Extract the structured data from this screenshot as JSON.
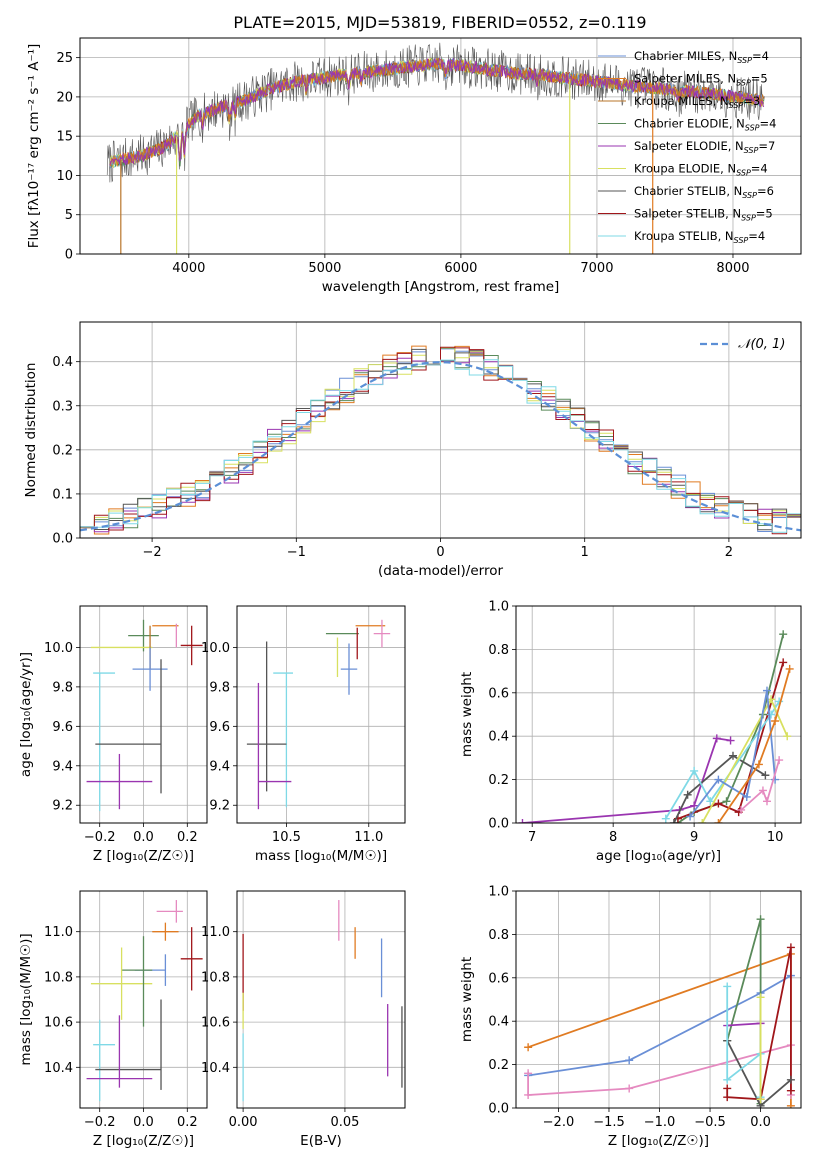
{
  "title": "PLATE=2015, MJD=53819, FIBERID=0552, z=0.119",
  "colors": {
    "chabrier_miles": "#6a8fd6",
    "salpeter_miles": "#e07b22",
    "kroupa_miles": "#b8742a",
    "chabrier_elodie": "#5a8a5a",
    "salpeter_elodie": "#9a35b0",
    "kroupa_elodie": "#d8e060",
    "chabrier_stelib": "#555555",
    "salpeter_stelib": "#a0161a",
    "kroupa_stelib": "#7fd9e6",
    "pink": "#e58ac0",
    "normal": "#5b8fd6"
  },
  "chart_data": [
    {
      "type": "line",
      "panel": "spectrum",
      "xlabel": "wavelength [Angstrom, rest frame]",
      "ylabel": "Flux [fλ10⁻¹⁷ erg cm⁻² s⁻¹ A⁻¹]",
      "xlim": [
        3200,
        8500
      ],
      "ylim": [
        0,
        27.5
      ],
      "xticks": [
        4000,
        5000,
        6000,
        7000,
        8000
      ],
      "yticks": [
        0,
        5,
        10,
        15,
        20,
        25
      ],
      "legend_position": "top-right",
      "continuum": {
        "x": [
          3400,
          3500,
          3650,
          3800,
          3950,
          4050,
          4200,
          4400,
          4600,
          4800,
          5000,
          5200,
          5400,
          5600,
          5800,
          6000,
          6200,
          6400,
          6600,
          6800,
          7000,
          7200,
          7500,
          7800,
          8100,
          8230
        ],
        "y": [
          11.5,
          12.0,
          12.5,
          13.5,
          15.5,
          17.5,
          18.5,
          19.5,
          21.0,
          22.0,
          22.5,
          23.0,
          23.3,
          23.8,
          24.2,
          24.0,
          23.5,
          23.0,
          22.8,
          22.3,
          22.0,
          21.5,
          21.0,
          20.5,
          19.8,
          19.5
        ]
      },
      "series": [
        {
          "name": "Chabrier MILES, N",
          "sub": "SSP",
          "value": "=4",
          "color_key": "chabrier_miles"
        },
        {
          "name": "Salpeter MILES, N",
          "sub": "SSP",
          "value": "=5",
          "color_key": "salpeter_miles"
        },
        {
          "name": "Kroupa MILES, N",
          "sub": "SSP",
          "value": "=3",
          "color_key": "kroupa_miles"
        },
        {
          "name": "Chabrier ELODIE, N",
          "sub": "SSP",
          "value": "=4",
          "color_key": "chabrier_elodie"
        },
        {
          "name": "Salpeter ELODIE, N",
          "sub": "SSP",
          "value": "=7",
          "color_key": "salpeter_elodie"
        },
        {
          "name": "Kroupa ELODIE, N",
          "sub": "SSP",
          "value": "=4",
          "color_key": "kroupa_elodie"
        },
        {
          "name": "Chabrier STELIB, N",
          "sub": "SSP",
          "value": "=6",
          "color_key": "chabrier_stelib"
        },
        {
          "name": "Salpeter STELIB, N",
          "sub": "SSP",
          "value": "=5",
          "color_key": "salpeter_stelib"
        },
        {
          "name": "Kroupa STELIB, N",
          "sub": "SSP",
          "value": "=4",
          "color_key": "kroupa_stelib"
        }
      ]
    },
    {
      "type": "line",
      "panel": "residuals",
      "xlabel": "(data-model)/error",
      "ylabel": "Normed distribution",
      "xlim": [
        -2.5,
        2.5
      ],
      "ylim": [
        0,
        0.49
      ],
      "xticks": [
        -2,
        -1,
        0,
        1,
        2
      ],
      "xtick_labels": [
        "−2",
        "−1",
        "0",
        "1",
        "2"
      ],
      "yticks": [
        0.0,
        0.1,
        0.2,
        0.3,
        0.4
      ],
      "legend": "𝒩(0, 1)",
      "legend_position": "top-right",
      "bin_width": 0.1,
      "bin_start": -2.5
    },
    {
      "type": "scatter",
      "panel": "age-vs-Z",
      "xlabel": "Z [log₁₀(Z/Z☉)]",
      "ylabel": "age [log₁₀(age/yr)]",
      "xlim": [
        -0.29,
        0.29
      ],
      "ylim": [
        9.11,
        10.21
      ],
      "xticks": [
        -0.2,
        0.0,
        0.2
      ],
      "xtick_labels": [
        "−0.2",
        "0.0",
        "0.2"
      ],
      "yticks": [
        9.2,
        9.4,
        9.6,
        9.8,
        10.0
      ],
      "points": [
        {
          "x": 0.1,
          "y": 10.11,
          "xe": 0.06,
          "ye": 0.0,
          "c": "salpeter_miles"
        },
        {
          "x": 0.15,
          "y": 10.06,
          "xe": 0.0,
          "ye": 0.06,
          "c": "pink"
        },
        {
          "x": 0.0,
          "y": 10.06,
          "xe": 0.07,
          "ye": 0.08,
          "c": "chabrier_elodie"
        },
        {
          "x": 0.22,
          "y": 10.01,
          "xe": 0.05,
          "ye": 0.1,
          "c": "salpeter_stelib"
        },
        {
          "x": -0.1,
          "y": 10.0,
          "xe": 0.14,
          "ye": 0.0,
          "c": "kroupa_elodie"
        },
        {
          "x": 0.03,
          "y": 10.0,
          "xe": 0.0,
          "ye": 0.11,
          "c": "kroupa_miles"
        },
        {
          "x": 0.03,
          "y": 9.89,
          "xe": 0.08,
          "ye": 0.11,
          "c": "chabrier_miles"
        },
        {
          "x": -0.18,
          "y": 9.87,
          "xe": 0.05,
          "ye": 0.0,
          "c": "kroupa_stelib"
        },
        {
          "x": -0.2,
          "y": 9.52,
          "xe": 0.0,
          "ye": 0.35,
          "c": "kroupa_stelib"
        },
        {
          "x": -0.07,
          "y": 9.51,
          "xe": 0.15,
          "ye": 0.0,
          "c": "chabrier_stelib"
        },
        {
          "x": 0.08,
          "y": 9.6,
          "xe": 0.0,
          "ye": 0.34,
          "c": "chabrier_stelib"
        },
        {
          "x": -0.11,
          "y": 9.32,
          "xe": 0.15,
          "ye": 0.14,
          "c": "salpeter_elodie"
        }
      ]
    },
    {
      "type": "scatter",
      "panel": "age-vs-mass",
      "xlabel": "mass [log₁₀(M/M☉)]",
      "ylabel": "",
      "xlim": [
        10.2,
        11.22
      ],
      "ylim": [
        9.11,
        10.21
      ],
      "xticks": [
        10.5,
        11.0
      ],
      "xtick_labels": [
        "10.5",
        "11.0"
      ],
      "yticks": [
        9.2,
        9.4,
        9.6,
        9.8,
        10.0
      ],
      "points": [
        {
          "x": 11.01,
          "y": 10.11,
          "xe": 0.09,
          "ye": 0.0,
          "c": "salpeter_miles"
        },
        {
          "x": 11.08,
          "y": 10.07,
          "xe": 0.05,
          "ye": 0.07,
          "c": "pink"
        },
        {
          "x": 10.84,
          "y": 10.07,
          "xe": 0.1,
          "ye": 0.0,
          "c": "chabrier_elodie"
        },
        {
          "x": 10.93,
          "y": 10.02,
          "xe": 0.0,
          "ye": 0.08,
          "c": "salpeter_stelib"
        },
        {
          "x": 10.81,
          "y": 9.95,
          "xe": 0.0,
          "ye": 0.1,
          "c": "kroupa_elodie"
        },
        {
          "x": 10.88,
          "y": 9.89,
          "xe": 0.05,
          "ye": 0.13,
          "c": "chabrier_miles"
        },
        {
          "x": 10.48,
          "y": 9.87,
          "xe": 0.06,
          "ye": 0.0,
          "c": "kroupa_stelib"
        },
        {
          "x": 10.5,
          "y": 9.53,
          "xe": 0.0,
          "ye": 0.34,
          "c": "kroupa_stelib"
        },
        {
          "x": 10.38,
          "y": 9.51,
          "xe": 0.12,
          "ye": 0.0,
          "c": "chabrier_stelib"
        },
        {
          "x": 10.38,
          "y": 9.65,
          "xe": 0.0,
          "ye": 0.38,
          "c": "chabrier_stelib"
        },
        {
          "x": 10.33,
          "y": 9.5,
          "xe": 0.0,
          "ye": 0.32,
          "c": "salpeter_elodie"
        },
        {
          "x": 10.43,
          "y": 9.32,
          "xe": 0.1,
          "ye": 0.0,
          "c": "salpeter_elodie"
        }
      ]
    },
    {
      "type": "line",
      "panel": "mass-weight-vs-age",
      "xlabel": "age [log₁₀(age/yr)]",
      "ylabel": "mass weight",
      "xlim": [
        6.8,
        10.32
      ],
      "ylim": [
        0,
        1.0
      ],
      "xticks": [
        7,
        8,
        9,
        10
      ],
      "yticks": [
        0.0,
        0.2,
        0.4,
        0.6,
        0.8,
        1.0
      ],
      "series": [
        {
          "c": "salpeter_elodie",
          "x": [
            6.88,
            8.82,
            9.0,
            9.28,
            9.45
          ],
          "y": [
            0.0,
            0.06,
            0.08,
            0.39,
            0.38
          ]
        },
        {
          "c": "chabrier_elodie",
          "x": [
            8.8,
            9.0,
            9.4,
            9.85,
            10.1
          ],
          "y": [
            0.0,
            0.05,
            0.1,
            0.5,
            0.87
          ]
        },
        {
          "c": "salpeter_stelib",
          "x": [
            8.8,
            9.3,
            9.55,
            10.1
          ],
          "y": [
            0.02,
            0.09,
            0.05,
            0.74
          ]
        },
        {
          "c": "chabrier_stelib",
          "x": [
            8.75,
            8.92,
            9.48,
            9.88
          ],
          "y": [
            0.0,
            0.13,
            0.31,
            0.22
          ]
        },
        {
          "c": "kroupa_stelib",
          "x": [
            8.65,
            9.0,
            9.2,
            9.95,
            10.05
          ],
          "y": [
            0.02,
            0.24,
            0.1,
            0.5,
            0.56
          ]
        },
        {
          "c": "kroupa_elodie",
          "x": [
            9.1,
            9.95,
            10.15
          ],
          "y": [
            0.0,
            0.57,
            0.4
          ]
        },
        {
          "c": "chabrier_miles",
          "x": [
            8.95,
            9.3,
            9.65,
            9.9,
            10.0
          ],
          "y": [
            0.03,
            0.2,
            0.12,
            0.61,
            0.2
          ]
        },
        {
          "c": "salpeter_miles",
          "x": [
            9.3,
            9.8,
            10.0,
            10.18
          ],
          "y": [
            0.0,
            0.27,
            0.47,
            0.71
          ]
        },
        {
          "c": "pink",
          "x": [
            9.58,
            9.85,
            9.9,
            10.05
          ],
          "y": [
            0.06,
            0.15,
            0.1,
            0.29
          ]
        }
      ]
    },
    {
      "type": "scatter",
      "panel": "mass-vs-Z",
      "xlabel": "Z [log₁₀(Z/Z☉)]",
      "ylabel": "mass [log₁₀(M/M☉)]",
      "xlim": [
        -0.29,
        0.29
      ],
      "ylim": [
        10.22,
        11.18
      ],
      "xticks": [
        -0.2,
        0.0,
        0.2
      ],
      "xtick_labels": [
        "−0.2",
        "0.0",
        "0.2"
      ],
      "yticks": [
        10.4,
        10.6,
        10.8,
        11.0
      ],
      "points": [
        {
          "x": 0.15,
          "y": 11.09,
          "xe": 0.0,
          "ye": 0.05,
          "c": "pink"
        },
        {
          "x": 0.12,
          "y": 11.09,
          "xe": 0.06,
          "ye": 0.0,
          "c": "pink"
        },
        {
          "x": 0.1,
          "y": 11.0,
          "xe": 0.06,
          "ye": 0.04,
          "c": "salpeter_miles"
        },
        {
          "x": 0.22,
          "y": 10.88,
          "xe": 0.05,
          "ye": 0.14,
          "c": "salpeter_stelib"
        },
        {
          "x": 0.1,
          "y": 10.83,
          "xe": 0.0,
          "ye": 0.07,
          "c": "chabrier_miles"
        },
        {
          "x": 0.03,
          "y": 10.83,
          "xe": 0.07,
          "ye": 0.0,
          "c": "chabrier_miles"
        },
        {
          "x": -0.03,
          "y": 10.83,
          "xe": 0.07,
          "ye": 0.0,
          "c": "chabrier_elodie"
        },
        {
          "x": -0.1,
          "y": 10.77,
          "xe": 0.14,
          "ye": 0.16,
          "c": "kroupa_elodie"
        },
        {
          "x": 0.0,
          "y": 10.78,
          "xe": 0.0,
          "ye": 0.2,
          "c": "chabrier_elodie"
        },
        {
          "x": -0.2,
          "y": 10.43,
          "xe": 0.0,
          "ye": 0.18,
          "c": "kroupa_stelib"
        },
        {
          "x": -0.18,
          "y": 10.5,
          "xe": 0.05,
          "ye": 0.0,
          "c": "kroupa_stelib"
        },
        {
          "x": 0.08,
          "y": 10.5,
          "xe": 0.0,
          "ye": 0.2,
          "c": "chabrier_stelib"
        },
        {
          "x": -0.07,
          "y": 10.39,
          "xe": 0.15,
          "ye": 0.0,
          "c": "chabrier_stelib"
        },
        {
          "x": -0.11,
          "y": 10.35,
          "xe": 0.15,
          "ye": 0.0,
          "c": "salpeter_elodie"
        },
        {
          "x": -0.11,
          "y": 10.47,
          "xe": 0.0,
          "ye": 0.16,
          "c": "salpeter_elodie"
        }
      ]
    },
    {
      "type": "scatter",
      "panel": "mass-vs-EBV",
      "xlabel": "E(B-V)",
      "ylabel": "",
      "xlim": [
        -0.003,
        0.0795
      ],
      "ylim": [
        10.22,
        11.18
      ],
      "xticks": [
        0.0,
        0.05
      ],
      "xtick_labels": [
        "0.00",
        "0.05"
      ],
      "yticks": [
        10.4,
        10.6,
        10.8,
        11.0
      ],
      "points": [
        {
          "x": 0.0,
          "y": 10.82,
          "xe": 0.0,
          "ye": 0.17,
          "c": "salpeter_stelib"
        },
        {
          "x": 0.0,
          "y": 10.65,
          "xe": 0.0,
          "ye": 0.08,
          "c": "kroupa_elodie"
        },
        {
          "x": 0.0,
          "y": 10.4,
          "xe": 0.0,
          "ye": 0.15,
          "c": "kroupa_stelib"
        },
        {
          "x": 0.047,
          "y": 11.05,
          "xe": 0.0,
          "ye": 0.09,
          "c": "pink"
        },
        {
          "x": 0.055,
          "y": 10.95,
          "xe": 0.0,
          "ye": 0.07,
          "c": "salpeter_miles"
        },
        {
          "x": 0.068,
          "y": 10.84,
          "xe": 0.0,
          "ye": 0.13,
          "c": "chabrier_miles"
        },
        {
          "x": 0.071,
          "y": 10.52,
          "xe": 0.0,
          "ye": 0.16,
          "c": "salpeter_elodie"
        },
        {
          "x": 0.078,
          "y": 10.49,
          "xe": 0.0,
          "ye": 0.18,
          "c": "chabrier_stelib"
        }
      ]
    },
    {
      "type": "line",
      "panel": "mass-weight-vs-Z",
      "xlabel": "Z [log₁₀(Z/Z☉)]",
      "ylabel": "mass weight",
      "xlim": [
        -2.42,
        0.4
      ],
      "ylim": [
        0,
        1.0
      ],
      "xticks": [
        -2.0,
        -1.5,
        -1.0,
        -0.5,
        0.0
      ],
      "xtick_labels": [
        "−2.0",
        "−1.5",
        "−1.0",
        "−0.5",
        "0.0"
      ],
      "yticks": [
        0.0,
        0.2,
        0.4,
        0.6,
        0.8,
        1.0
      ],
      "series": [
        {
          "c": "salpeter_miles",
          "x": [
            -2.3,
            0.3,
            0.3
          ],
          "y": [
            0.28,
            0.71,
            0.01
          ]
        },
        {
          "c": "chabrier_miles",
          "x": [
            -2.3,
            -1.3,
            0.0,
            0.3
          ],
          "y": [
            0.15,
            0.22,
            0.53,
            0.61
          ]
        },
        {
          "c": "pink",
          "x": [
            -2.3,
            -2.3,
            -1.3,
            0.3,
            0.3
          ],
          "y": [
            0.16,
            0.06,
            0.09,
            0.29,
            0.06
          ]
        },
        {
          "c": "chabrier_elodie",
          "x": [
            -0.33,
            0.0,
            0.0
          ],
          "y": [
            0.31,
            0.87,
            0.02
          ]
        },
        {
          "c": "salpeter_elodie",
          "x": [
            -0.33,
            0.0
          ],
          "y": [
            0.38,
            0.39
          ]
        },
        {
          "c": "salpeter_stelib",
          "x": [
            -0.33,
            -0.33,
            0.0,
            0.3,
            0.3
          ],
          "y": [
            0.09,
            0.05,
            0.04,
            0.74,
            0.08
          ]
        },
        {
          "c": "chabrier_stelib",
          "x": [
            -0.33,
            0.0,
            0.3
          ],
          "y": [
            0.31,
            0.01,
            0.13
          ]
        },
        {
          "c": "kroupa_stelib",
          "x": [
            -0.33,
            -0.33,
            0.0,
            0.0
          ],
          "y": [
            0.56,
            0.13,
            0.25,
            0.05
          ]
        },
        {
          "c": "kroupa_elodie",
          "x": [
            0.0,
            0.0
          ],
          "y": [
            0.51,
            0.04
          ]
        }
      ]
    }
  ]
}
